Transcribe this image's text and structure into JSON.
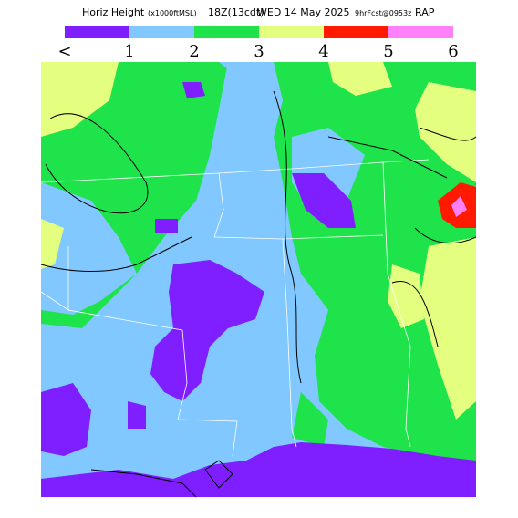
{
  "header": {
    "title_parts": [
      "Horiz Height",
      "(x1000ftMSL)",
      "18Z(13cdt)",
      "WED 14 May 2025",
      "9hrFcst@0953z",
      "RAP"
    ]
  },
  "legend": {
    "colors": [
      "#7f1fff",
      "#80c8ff",
      "#1ee34a",
      "#e4ff80",
      "#ff1a00",
      "#ff80f8"
    ],
    "labels": [
      "<",
      "1",
      "2",
      "3",
      "4",
      "5",
      "6"
    ]
  }
}
